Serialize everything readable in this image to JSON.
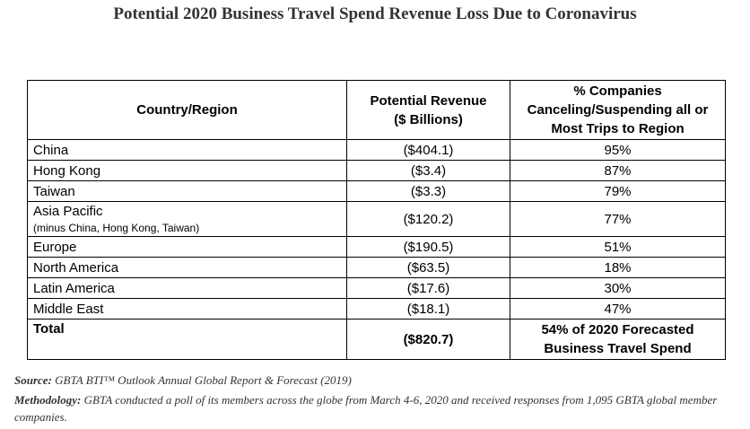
{
  "title": "Potential 2020 Business Travel Spend Revenue Loss Due to Coronavirus",
  "table": {
    "headers": {
      "region": "Country/Region",
      "revenue_line1": "Potential Revenue",
      "revenue_line2": "($ Billions)",
      "pct_line1": "% Companies",
      "pct_line2": "Canceling/Suspending all or",
      "pct_line3": "Most Trips to Region"
    },
    "rows": [
      {
        "region": "China",
        "note": "",
        "revenue": "($404.1)",
        "pct": "95%"
      },
      {
        "region": "Hong Kong",
        "note": "",
        "revenue": "($3.4)",
        "pct": "87%"
      },
      {
        "region": "Taiwan",
        "note": "",
        "revenue": "($3.3)",
        "pct": "79%"
      },
      {
        "region": "Asia Pacific",
        "note": "(minus China, Hong Kong, Taiwan)",
        "revenue": "($120.2)",
        "pct": "77%"
      },
      {
        "region": "Europe",
        "note": "",
        "revenue": "($190.5)",
        "pct": "51%"
      },
      {
        "region": "North America",
        "note": "",
        "revenue": "($63.5)",
        "pct": "18%"
      },
      {
        "region": "Latin America",
        "note": "",
        "revenue": "($17.6)",
        "pct": "30%"
      },
      {
        "region": "Middle East",
        "note": "",
        "revenue": "($18.1)",
        "pct": "47%"
      }
    ],
    "total": {
      "label": "Total",
      "revenue": "($820.7)",
      "pct_line1": "54% of 2020 Forecasted",
      "pct_line2": "Business Travel Spend"
    }
  },
  "footer": {
    "source_label": "Source:",
    "source_text": "GBTA BTI™ Outlook Annual Global Report & Forecast (2019)",
    "method_label": "Methodology:",
    "method_text": "GBTA conducted a poll of its members across the globe from March 4-6, 2020 and received responses from 1,095 GBTA global member companies."
  }
}
